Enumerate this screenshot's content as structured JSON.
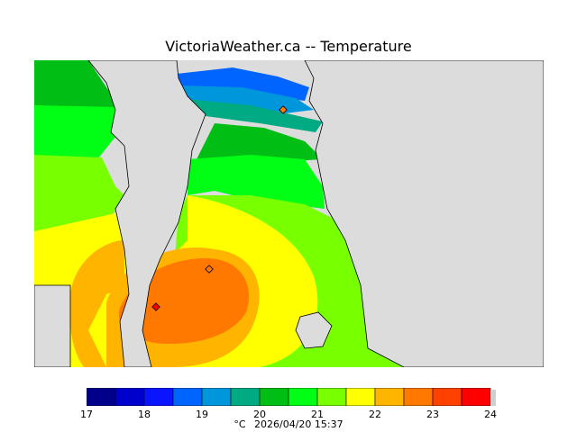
{
  "title": "VictoriaWeather.ca -- Temperature",
  "legend": {
    "colors": [
      "#00008b",
      "#0000cd",
      "#0a14ff",
      "#0064ff",
      "#0096dc",
      "#00aa82",
      "#00be14",
      "#00ff14",
      "#78ff00",
      "#ffff00",
      "#ffb400",
      "#ff7800",
      "#ff4100",
      "#ff0000"
    ],
    "tick_labels": [
      "17",
      "18",
      "19",
      "20",
      "21",
      "22",
      "23",
      "24"
    ]
  },
  "caption": {
    "unit": "°C",
    "timestamp": "2026/04/20 15:37"
  },
  "colors": {
    "land_background": "#dcdcdc",
    "coast_line": "#000000"
  }
}
